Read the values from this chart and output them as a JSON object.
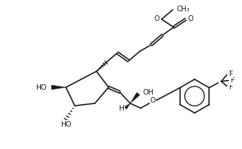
{
  "bg_color": "#ffffff",
  "line_color": "#1a1a1a",
  "line_width": 1.1,
  "font_size": 6.5,
  "fig_width": 2.97,
  "fig_height": 1.82,
  "dpi": 100
}
